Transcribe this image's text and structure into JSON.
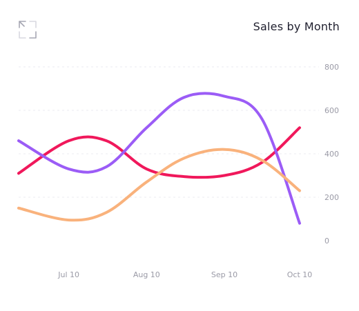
{
  "header": {
    "title": "Sales by Month",
    "expand_icon": "expand-icon"
  },
  "colors": {
    "magenta": "#f0185b",
    "purple": "#9b5cf6",
    "orange": "#f9b27c",
    "grid": "#ebebf0",
    "tick": "#9a9aa6"
  },
  "chart_data": {
    "type": "line",
    "title": "Sales by Month",
    "x": [
      "2023-06-20",
      "2023-07-10",
      "2023-07-25",
      "2023-08-10",
      "2023-08-25",
      "2023-09-10",
      "2023-09-25",
      "2023-10-10"
    ],
    "x_tick_labels": [
      "Jul 10",
      "Aug 10",
      "Sep 10",
      "Oct 10"
    ],
    "x_tick_dates": [
      "2023-07-10",
      "2023-08-10",
      "2023-09-10",
      "2023-10-10"
    ],
    "ylim": [
      0,
      800
    ],
    "y_ticks": [
      "800",
      "600",
      "400",
      "200",
      "0"
    ],
    "grid": true,
    "series": [
      {
        "color": "#f0185b",
        "values": [
          310,
          460,
          460,
          330,
          295,
          300,
          360,
          520
        ]
      },
      {
        "color": "#9b5cf6",
        "values": [
          460,
          330,
          340,
          520,
          660,
          665,
          560,
          80
        ]
      },
      {
        "color": "#f9b27c",
        "values": [
          150,
          95,
          130,
          270,
          380,
          420,
          370,
          230
        ]
      }
    ]
  }
}
